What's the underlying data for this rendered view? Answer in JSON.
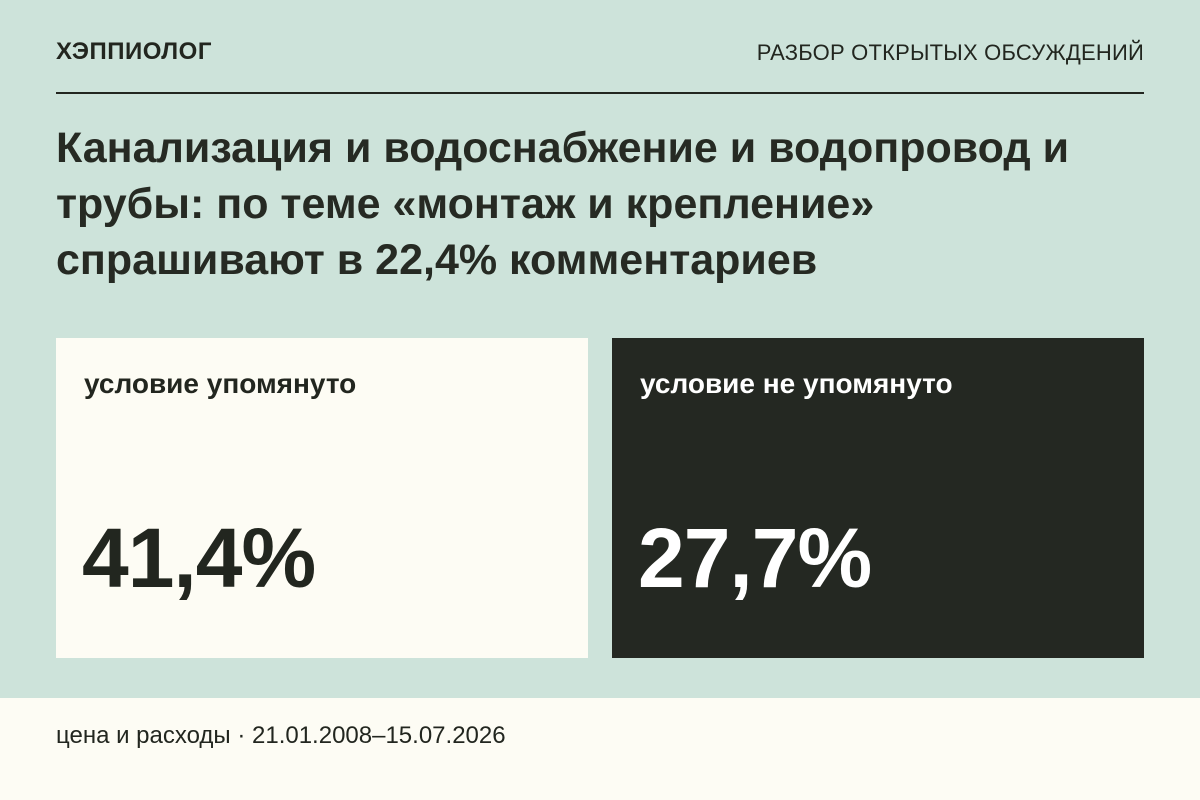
{
  "header": {
    "brand": "ХЭППИОЛОГ",
    "section_label": "РАЗБОР ОТКРЫТЫХ ОБСУЖДЕНИЙ"
  },
  "headline": "Канализация и водоснабжение и водопровод и трубы: по теме «монтаж и крепление» спрашивают в 22,4% комментариев",
  "cards": [
    {
      "label": "условие упомянуто",
      "value": "41,4%"
    },
    {
      "label": "условие не упомянуто",
      "value": "27,7%"
    }
  ],
  "footer": {
    "text": "цена и расходы · 21.01.2008–15.07.2026"
  },
  "colors": {
    "background": "#cde3da",
    "light_card": "#fdfcf4",
    "dark_card": "#242822",
    "text_dark": "#22261f",
    "text_light": "#ffffff"
  }
}
